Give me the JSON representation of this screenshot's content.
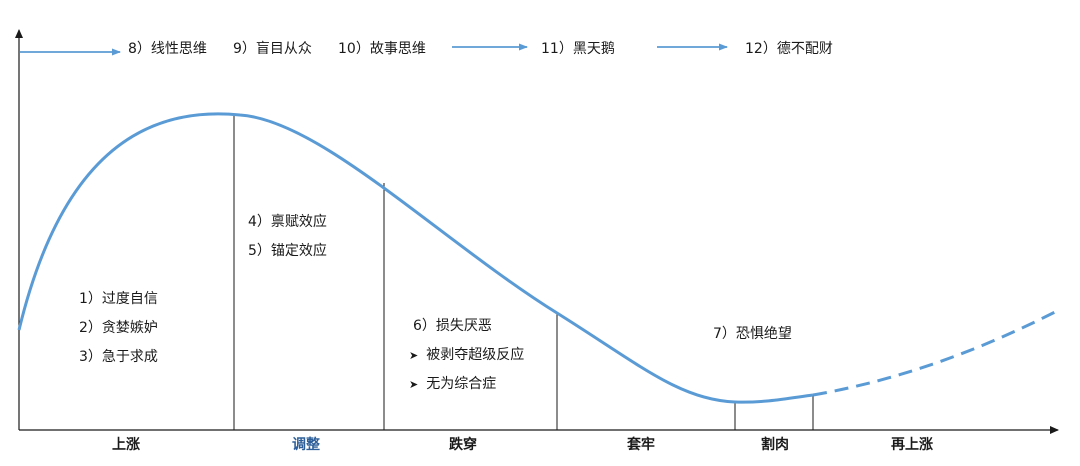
{
  "colors": {
    "curve": "#5b9bd5",
    "axis": "#1a1a1a",
    "divider": "#1a1a1a",
    "text": "#1a1a1a",
    "phase_dark": "#1a1a1a",
    "phase_blue": "#2e5f9a"
  },
  "top_biases": [
    "8）线性思维",
    "9）盲目从众",
    "10）故事思维",
    "11）黑天鹅",
    "12）德不配财"
  ],
  "zones": {
    "rise": [
      "1）过度自信",
      "2）贪婪嫉妒",
      "3）急于求成"
    ],
    "adjust": [
      "4）禀赋效应",
      "5）锚定效应"
    ],
    "fall": {
      "title": "6）损失厌恶",
      "bullets": [
        "被剥夺超级反应",
        "无为综合症"
      ],
      "bullet_icon": "arrowhead-bullet-icon"
    },
    "trapped": [
      "7）恐惧绝望"
    ]
  },
  "phases": [
    {
      "label": "上涨",
      "color": "phase_dark"
    },
    {
      "label": "调整",
      "color": "phase_blue"
    },
    {
      "label": "跌穿",
      "color": "phase_dark"
    },
    {
      "label": "套牢",
      "color": "phase_dark"
    },
    {
      "label": "割肉",
      "color": "phase_dark"
    },
    {
      "label": "再上涨",
      "color": "phase_dark"
    }
  ]
}
